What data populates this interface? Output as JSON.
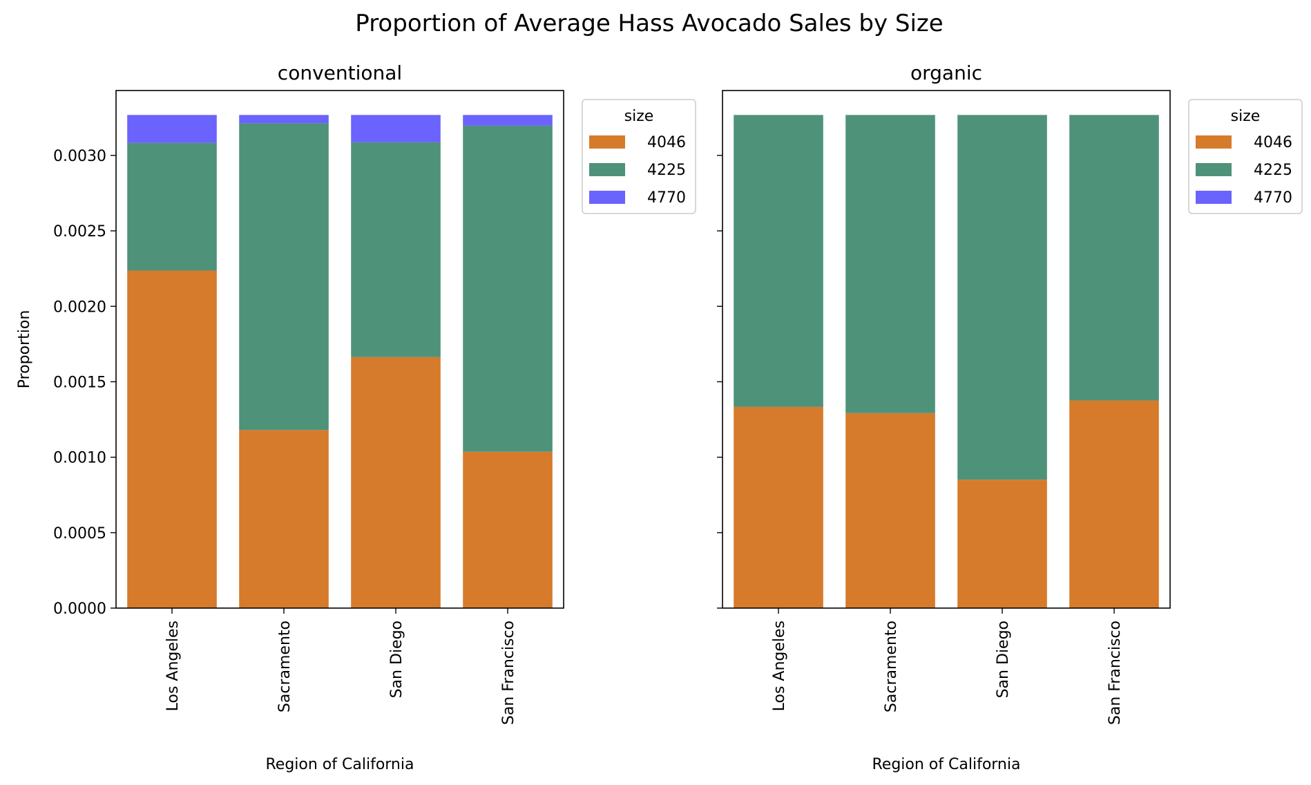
{
  "title": "Proportion of Average Hass Avocado Sales by Size",
  "chart_data": [
    {
      "type": "bar",
      "stacked": true,
      "title": "conventional",
      "xlabel": "Region of California",
      "ylabel": "Proportion",
      "ylim": [
        0,
        0.00343
      ],
      "yticks": [
        "0.0000",
        "0.0005",
        "0.0010",
        "0.0015",
        "0.0020",
        "0.0025",
        "0.0030"
      ],
      "categories": [
        "Los Angeles",
        "Sacramento",
        "San Diego",
        "San Francisco"
      ],
      "legend": {
        "title": "size",
        "placement": "upper-right-outside"
      },
      "series": [
        {
          "name": "4046",
          "color": "#d67b2b",
          "values": [
            0.002237,
            0.00118,
            0.001663,
            0.001036
          ]
        },
        {
          "name": "4225",
          "color": "#4f927a",
          "values": [
            0.000846,
            0.002033,
            0.001424,
            0.002161
          ]
        },
        {
          "name": "4770",
          "color": "#6b63fd",
          "values": [
            0.000185,
            5.5e-05,
            0.000181,
            7.1e-05
          ]
        }
      ]
    },
    {
      "type": "bar",
      "stacked": true,
      "title": "organic",
      "xlabel": "Region of California",
      "ylabel": "",
      "ylim": [
        0,
        0.00343
      ],
      "categories": [
        "Los Angeles",
        "Sacramento",
        "San Diego",
        "San Francisco"
      ],
      "legend": {
        "title": "size",
        "placement": "upper-right-outside"
      },
      "series": [
        {
          "name": "4046",
          "color": "#d67b2b",
          "values": [
            0.001333,
            0.001292,
            0.000851,
            0.001376
          ]
        },
        {
          "name": "4225",
          "color": "#4f927a",
          "values": [
            0.001935,
            0.001976,
            0.002417,
            0.001892
          ]
        },
        {
          "name": "4770",
          "color": "#6b63fd",
          "values": [
            0.0,
            0.0,
            0.0,
            0.0
          ]
        }
      ]
    }
  ]
}
